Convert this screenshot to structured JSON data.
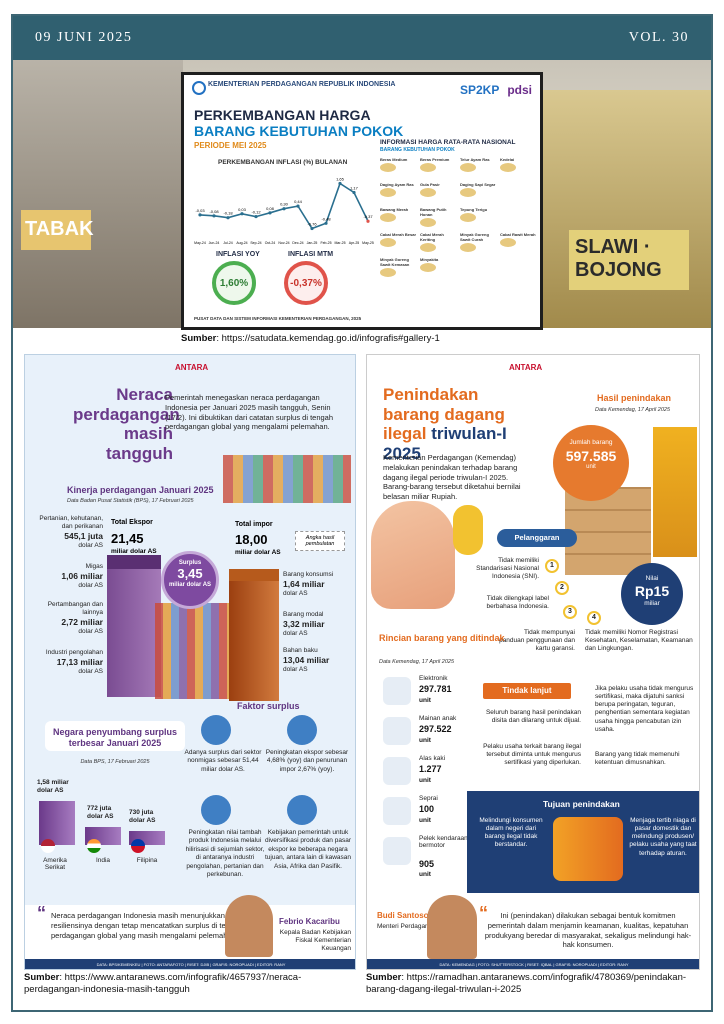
{
  "header": {
    "date": "09 JUNI 2025",
    "volume": "VOL. 30"
  },
  "background": {
    "sign_left": "TABAK",
    "sign_right": "SLAWI · BOJONG"
  },
  "infographic1": {
    "ministry": "KEMENTERIAN PERDAGANGAN REPUBLIK INDONESIA",
    "logos": [
      "SP2KP",
      "pdsi"
    ],
    "title_line1": "PERKEMBANGAN HARGA",
    "title_line2": "BARANG KEBUTUHAN POKOK",
    "period": "PERIODE MEI 2025",
    "chart_title": "PERKEMBANGAN INFLASI (%) BULANAN",
    "inflasi_yoy_label": "INFLASI YOY",
    "inflasi_yoy_value": "1,60%",
    "inflasi_mtm_label": "INFLASI MTM",
    "inflasi_mtm_value": "-0,37%",
    "right_title": "INFORMASI HARGA RATA-RATA NASIONAL",
    "right_subtitle": "BARANG KEBUTUHAN POKOK",
    "items": [
      "Beras Medium",
      "Beras Premium",
      "Telur Ayam Ras",
      "Kedelai",
      "Daging Ayam Ras",
      "Gula Pasir",
      "Daging Sapi Segar",
      "",
      "Bawang Merah",
      "Bawang Putih Honan",
      "Tepung Terigu",
      "",
      "Cabai Merah Besar",
      "Cabai Merah Keriting",
      "Minyak Goreng Sawit Curah",
      "Cabai Rawit Merah",
      "Minyak Goreng Sawit Kemasan",
      "Minyakita"
    ],
    "footer": "PUSAT DATA DAN SISTEM INFORMASI KEMENTERIAN PERDAGANGAN, 2025"
  },
  "chart_data": {
    "type": "line",
    "title": "PERKEMBANGAN INFLASI (%) BULANAN",
    "x": [
      "May-24",
      "Jun-24",
      "Jul-24",
      "Aug-24",
      "Sep-24",
      "Oct-24",
      "Nov-24",
      "Dec-24",
      "Jan-25",
      "Feb-25",
      "Mar-25",
      "Apr-25",
      "May-25"
    ],
    "series": [
      {
        "values": [
          -0.03,
          -0.08,
          -0.18,
          0.03,
          -0.12,
          0.08,
          0.3,
          0.44,
          -0.76,
          -0.48,
          1.65,
          1.17,
          -0.37
        ]
      }
    ]
  },
  "source1": {
    "label": "Sumber",
    "url": ": https://satudata.kemendag.go.id/infografis#gallery-1"
  },
  "infographic2": {
    "brand": "ANTARA",
    "title": "Neraca perdagangan masih tangguh",
    "intro": "Pemerintah menegaskan neraca perdagangan Indonesia per Januari 2025 masih tangguh, Senin (17/2). Ini dibuktikan dari catatan surplus di tengah perdagangan global yang mengalami pelemahan.",
    "kinerja_title": "Kinerja perdagangan Januari 2025",
    "kinerja_sub": "Data Badan Pusat Statistik (BPS), 17 Februari 2025",
    "ekspor_label": "Total Ekspor",
    "ekspor_value": "21,45",
    "ekspor_unit": "miliar dolar AS",
    "impor_label": "Total impor",
    "impor_value": "18,00",
    "impor_unit": "miliar dolar AS",
    "angka_note": "Angka hasil pembulatan",
    "surplus_label": "Surplus",
    "surplus_value": "3,45",
    "surplus_unit": "miliar dolar AS",
    "left_items": [
      {
        "label": "Pertanian, kehutanan, dan perikanan",
        "value": "545,1 juta",
        "unit": "dolar AS"
      },
      {
        "label": "Migas",
        "value": "1,06 miliar",
        "unit": "dolar AS"
      },
      {
        "label": "Pertambangan dan lainnya",
        "value": "2,72 miliar",
        "unit": "dolar AS"
      },
      {
        "label": "Industri pengolahan",
        "value": "17,13 miliar",
        "unit": "dolar AS"
      }
    ],
    "right_items": [
      {
        "label": "Barang konsumsi",
        "value": "1,64 miliar",
        "unit": "dolar AS"
      },
      {
        "label": "Barang modal",
        "value": "3,32 miliar",
        "unit": "dolar AS"
      },
      {
        "label": "Bahan baku",
        "value": "13,04 miliar",
        "unit": "dolar AS"
      }
    ],
    "faktor_title": "Faktor surplus",
    "faktor": [
      "Adanya surplus dari sektor nonmigas sebesar 51,44 miliar dolar AS.",
      "Peningkatan ekspor sebesar 4,68% (yoy) dan penurunan impor 2,67% (yoy).",
      "Peningkatan nilai tambah produk Indonesia melalui hilirisasi di sejumlah sektor, di antaranya industri pengolahan, pertanian dan perkebunan.",
      "Kebijakan pemerintah untuk diversifikasi produk dan pasar ekspor ke beberapa negara tujuan, antara lain di kawasan Asia, Afrika dan Pasifik."
    ],
    "negara_title": "Negara penyumbang surplus terbesar Januari 2025",
    "negara_sub": "Data BPS, 17 Februari 2025",
    "negara": [
      {
        "name": "Amerika Serikat",
        "value": "1,58 miliar",
        "unit": "dolar AS"
      },
      {
        "name": "India",
        "value": "772 juta",
        "unit": "dolar AS"
      },
      {
        "name": "Filipina",
        "value": "730 juta",
        "unit": "dolar AS"
      }
    ],
    "quote": "Neraca perdagangan Indonesia masih menunjukkan resiliensinya dengan tetap mencatatkan surplus di tengah perdagangan global yang masih mengalami pelemahan.",
    "person_name": "Febrio Kacaribu",
    "person_role": "Kepala Badan Kebijakan Fiskal Kementerian Keuangan",
    "footer": "DATA: BPS/KEMENKEU | FOTO: ANTARAFOTO | RISET: DJIB | GRAFIS: NOROPUADI | EDITOR: RANY"
  },
  "source2": {
    "label": "Sumber",
    "url": ": https://www.antaranews.com/infografik/4657937/neraca-perdagangan-indonesia-masih-tangguh"
  },
  "infographic3": {
    "brand": "ANTARA",
    "title1": "Penindakan barang dagang ilegal ",
    "title2": "triwulan-I 2025",
    "intro": "Kementerian Perdagangan (Kemendag) melakukan penindakan terhadap barang dagang ilegal periode triwulan-I 2025. Barang-barang tersebut diketahui bernilai belasan miliar Rupiah.",
    "hasil_title": "Hasil penindakan",
    "hasil_sub": "Data Kemendag, 17 April 2025",
    "jumlah_label": "Jumlah barang",
    "jumlah_value": "597.585",
    "jumlah_unit": "unit",
    "nilai_label": "Nilai",
    "nilai_value": "Rp15",
    "nilai_unit": "miliar",
    "pelanggaran_title": "Pelanggaran",
    "pelanggaran": [
      "Tidak memiliki Standarisasi Nasional Indonesia (SNI).",
      "Tidak dilengkapi label berbahasa Indonesia.",
      "Tidak mempunyai panduan penggunaan dan kartu garansi.",
      "Tidak memiliki Nomor Registrasi Kesehatan, Keselamatan, Keamanan dan Lingkungan."
    ],
    "rincian_title": "Rincian barang yang ditindak",
    "rincian_sub": "Data Kemendag, 17 April 2025",
    "rincian": [
      {
        "name": "Elektronik",
        "value": "297.781",
        "unit": "unit"
      },
      {
        "name": "Mainan anak",
        "value": "297.522",
        "unit": "unit"
      },
      {
        "name": "Alas kaki",
        "value": "1.277",
        "unit": "unit"
      },
      {
        "name": "Seprai",
        "value": "100",
        "unit": "unit"
      },
      {
        "name": "Pelek kendaraan bermotor",
        "value": "905",
        "unit": "unit"
      }
    ],
    "tindak_title": "Tindak lanjut",
    "tindak": [
      "Seluruh barang hasil penindakan disita dan dilarang untuk dijual.",
      "Pelaku usaha terkait barang ilegal tersebut diminta untuk mengurus sertifikasi yang diperlukan.",
      "Jika pelaku usaha tidak mengurus sertifikasi, maka dijatuhi sanksi berupa peringatan, teguran, penghentian sementara kegiatan usaha hingga pencabutan izin usaha.",
      "Barang yang tidak memenuhi ketentuan dimusnahkan."
    ],
    "tujuan_title": "Tujuan penindakan",
    "tujuan_left": "Melindungi konsumen dalam negeri dari barang ilegal tidak berstandar.",
    "tujuan_right": "Menjaga tertib niaga di pasar domestik dan melindungi produsen/ pelaku usaha yang taat terhadap aturan.",
    "person_name": "Budi Santoso",
    "person_role": "Menteri Perdagangan",
    "quote": "Ini (penindakan) dilakukan sebagai bentuk komitmen pemerintah dalam menjamin keamanan, kualitas, kepatuhan produkyang beredar di masyarakat, sekaligus melindungi hak-hak konsumen.",
    "footer": "DATA: KEMENDAG | FOTO: SHUTTERSTOCK | RISET: IQBAL | GRAFIS: NOROPUADI | EDITOR: RANY"
  },
  "source3": {
    "label": "Sumber",
    "url": ": https://ramadhan.antaranews.com/infografik/4780369/penindakan-barang-dagang-ilegal-triwulan-i-2025"
  }
}
